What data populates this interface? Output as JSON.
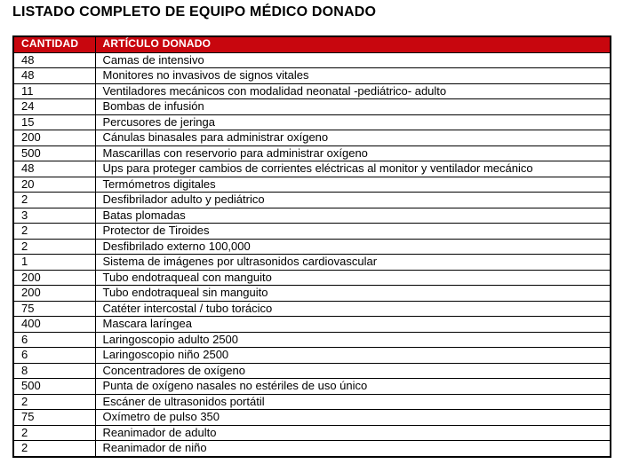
{
  "page": {
    "title": "LISTADO COMPLETO DE EQUIPO MÉDICO DONADO"
  },
  "colors": {
    "header_bg": "#C8060E",
    "header_text": "#FFFFFF",
    "border": "#000000",
    "text": "#000000",
    "background": "#FFFFFF"
  },
  "table": {
    "headers": [
      "CANTIDAD",
      "ARTÍCULO DONADO"
    ],
    "rows": [
      {
        "cantidad": "48",
        "articulo": "Camas de intensivo"
      },
      {
        "cantidad": "48",
        "articulo": "Monitores no invasivos de signos vitales"
      },
      {
        "cantidad": "11",
        "articulo": "Ventiladores mecánicos con modalidad neonatal -pediátrico- adulto"
      },
      {
        "cantidad": "24",
        "articulo": "Bombas de infusión"
      },
      {
        "cantidad": "15",
        "articulo": "Percusores de jeringa"
      },
      {
        "cantidad": "200",
        "articulo": "Cánulas binasales para administrar oxígeno"
      },
      {
        "cantidad": "500",
        "articulo": "Mascarillas con reservorio para administrar oxígeno"
      },
      {
        "cantidad": "48",
        "articulo": "Ups para proteger cambios de corrientes eléctricas al monitor y ventilador mecánico"
      },
      {
        "cantidad": "20",
        "articulo": "Termómetros digitales"
      },
      {
        "cantidad": "2",
        "articulo": "Desfibrilador adulto y pediátrico"
      },
      {
        "cantidad": "3",
        "articulo": "Batas plomadas"
      },
      {
        "cantidad": "2",
        "articulo": "Protector de Tiroides"
      },
      {
        "cantidad": "2",
        "articulo": "Desfibrilado externo 100,000"
      },
      {
        "cantidad": "1",
        "articulo": "Sistema de imágenes por ultrasonidos cardiovascular"
      },
      {
        "cantidad": "200",
        "articulo": "Tubo endotraqueal con manguito"
      },
      {
        "cantidad": "200",
        "articulo": "Tubo endotraqueal sin manguito"
      },
      {
        "cantidad": "75",
        "articulo": "Catéter intercostal / tubo torácico"
      },
      {
        "cantidad": "400",
        "articulo": "Mascara laríngea"
      },
      {
        "cantidad": "6",
        "articulo": "Laringoscopio adulto 2500"
      },
      {
        "cantidad": "6",
        "articulo": "Laringoscopio niño 2500"
      },
      {
        "cantidad": "8",
        "articulo": "Concentradores de oxígeno"
      },
      {
        "cantidad": "500",
        "articulo": "Punta de oxígeno nasales no estériles de uso único"
      },
      {
        "cantidad": "2",
        "articulo": "Escáner de ultrasonidos portátil"
      },
      {
        "cantidad": "75",
        "articulo": "Oxímetro de pulso 350"
      },
      {
        "cantidad": "2",
        "articulo": "Reanimador de adulto"
      },
      {
        "cantidad": "2",
        "articulo": "Reanimador de niño"
      }
    ]
  }
}
